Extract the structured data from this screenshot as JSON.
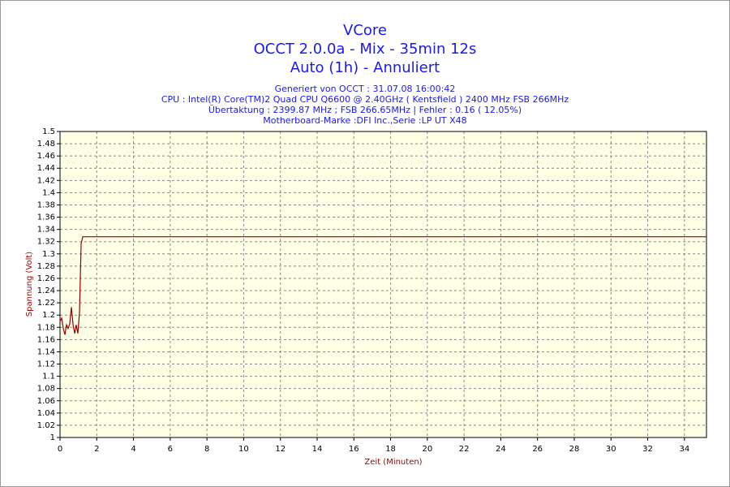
{
  "chart_data": {
    "type": "line",
    "title": "VCore",
    "subtitle": [
      "OCCT 2.0.0a - Mix - 35min 12s",
      "Auto (1h) - Annuliert"
    ],
    "info": [
      "Generiert von OCCT : 31.07.08 16:00:42",
      "CPU : Intel(R) Core(TM)2 Quad CPU Q6600 @ 2.40GHz ( Kentsfield ) 2400 MHz FSB 266MHz",
      "Übertaktung : 2399.87 MHz ; FSB 266.65MHz | Fehler : 0.16 ( 12.05%)",
      "Motherboard-Marke :DFI Inc.,Serie :LP UT X48"
    ],
    "x_label": "Zeit (Minuten)",
    "y_label": "Spannung (Volt)",
    "x": [
      0,
      0.09,
      0.18,
      0.27,
      0.35,
      0.44,
      0.53,
      0.62,
      0.71,
      0.8,
      0.88,
      0.97,
      1.06,
      1.15,
      1.24,
      35.2
    ],
    "series": [
      {
        "color": "#990000",
        "values": [
          1.19,
          1.195,
          1.178,
          1.168,
          1.184,
          1.178,
          1.186,
          1.213,
          1.184,
          1.17,
          1.184,
          1.17,
          1.204,
          1.317,
          1.328,
          1.328
        ]
      }
    ],
    "xlim": [
      0,
      35.2
    ],
    "xticks": [
      0,
      2,
      4,
      6,
      8,
      10,
      12,
      14,
      16,
      18,
      20,
      22,
      24,
      26,
      28,
      30,
      32,
      34
    ],
    "ylim": [
      1,
      1.5
    ],
    "yticks": [
      1,
      1.02,
      1.04,
      1.06,
      1.08,
      1.1,
      1.12,
      1.14,
      1.16,
      1.18,
      1.2,
      1.22,
      1.24,
      1.26,
      1.28,
      1.3,
      1.32,
      1.34,
      1.36,
      1.38,
      1.4,
      1.42,
      1.44,
      1.46,
      1.48,
      1.5
    ],
    "grid": true,
    "plot_background": "#ffffe6"
  }
}
